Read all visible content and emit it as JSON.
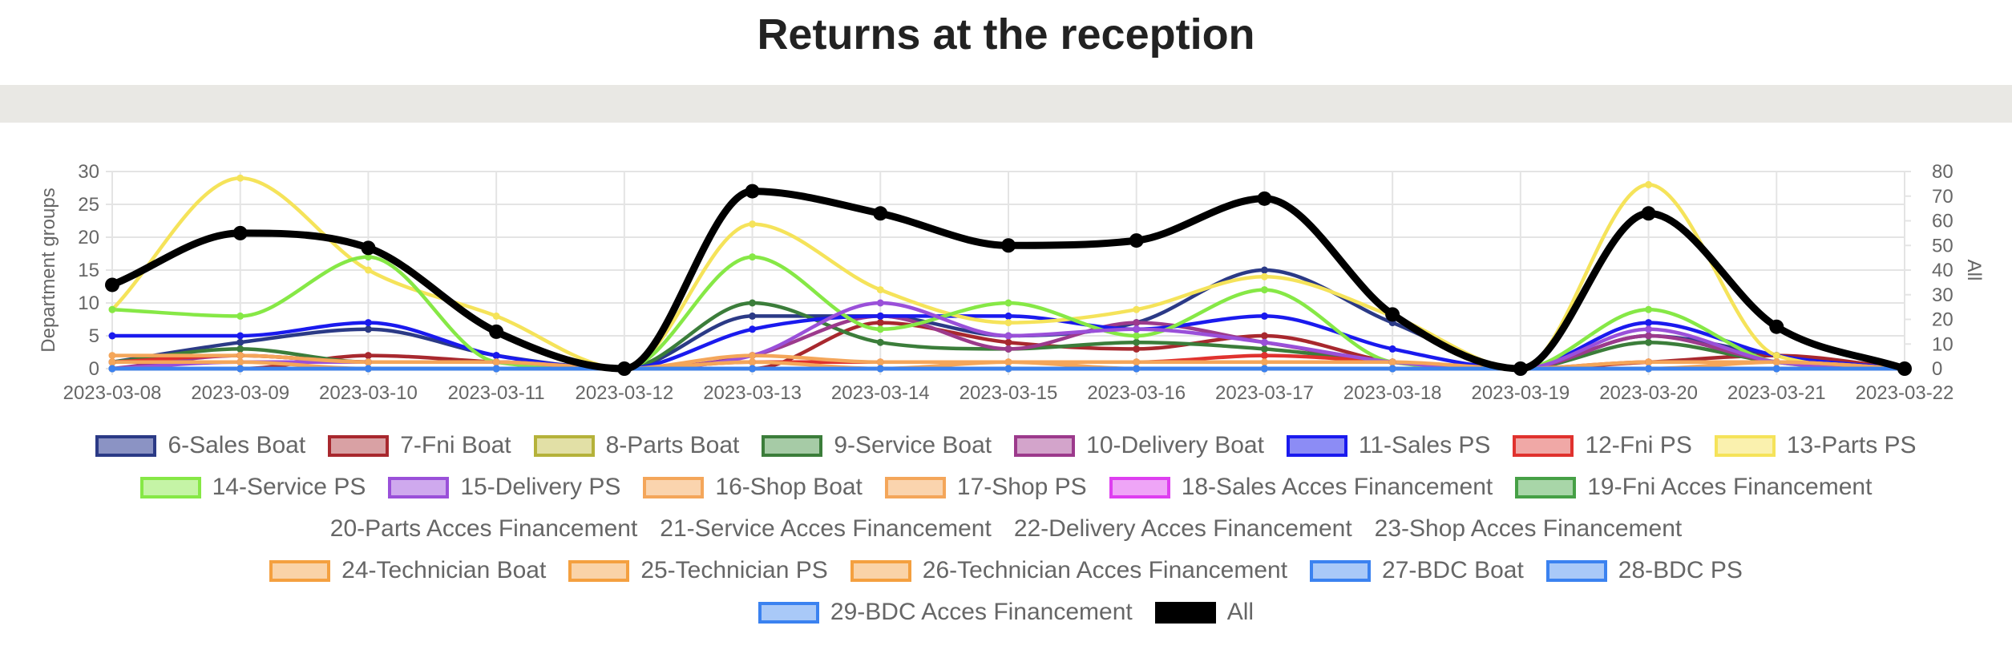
{
  "header": {
    "title": "Returns at the reception"
  },
  "chart_data": {
    "type": "line",
    "x": [
      "2023-03-08",
      "2023-03-09",
      "2023-03-10",
      "2023-03-11",
      "2023-03-12",
      "2023-03-13",
      "2023-03-14",
      "2023-03-15",
      "2023-03-16",
      "2023-03-17",
      "2023-03-18",
      "2023-03-19",
      "2023-03-20",
      "2023-03-21",
      "2023-03-22"
    ],
    "ylabel": "Department groups",
    "y2label": "All",
    "ylim": [
      0,
      30
    ],
    "y2lim": [
      0,
      80
    ],
    "yticks": [
      "0",
      "5",
      "10",
      "15",
      "20",
      "25",
      "30"
    ],
    "y2ticks": [
      "0",
      "10",
      "20",
      "30",
      "40",
      "50",
      "60",
      "70",
      "80"
    ],
    "grid": true,
    "legend_position": "bottom",
    "series": [
      {
        "name": "6-Sales Boat",
        "color": "#2b3a86",
        "fill": "#8b93c4",
        "axis": "left",
        "values": [
          1,
          4,
          6,
          2,
          0,
          8,
          8,
          5,
          7,
          15,
          7,
          0,
          5,
          2,
          0
        ]
      },
      {
        "name": "7-Fni Boat",
        "color": "#a8282e",
        "fill": "#d9a1a4",
        "axis": "left",
        "values": [
          0,
          0,
          2,
          1,
          0,
          0,
          7,
          4,
          3,
          5,
          1,
          0,
          1,
          2,
          0
        ]
      },
      {
        "name": "8-Parts Boat",
        "color": "#b5b23a",
        "fill": "#e2e0a6",
        "axis": "left",
        "values": [
          0,
          0,
          0,
          0,
          0,
          0,
          0,
          0,
          0,
          0,
          0,
          0,
          0,
          0,
          0
        ]
      },
      {
        "name": "9-Service Boat",
        "color": "#3b7d3a",
        "fill": "#a6cba6",
        "axis": "left",
        "values": [
          1,
          3,
          1,
          1,
          0,
          10,
          4,
          3,
          4,
          3,
          1,
          0,
          4,
          1,
          0
        ]
      },
      {
        "name": "10-Delivery Boat",
        "color": "#9c3a8c",
        "fill": "#d3a4cb",
        "axis": "left",
        "values": [
          0,
          2,
          1,
          1,
          0,
          2,
          8,
          3,
          7,
          4,
          1,
          0,
          5,
          1,
          0
        ]
      },
      {
        "name": "11-Sales PS",
        "color": "#1a1aee",
        "fill": "#8c8cf5",
        "axis": "left",
        "values": [
          5,
          5,
          7,
          2,
          0,
          6,
          8,
          8,
          6,
          8,
          3,
          0,
          7,
          2,
          0
        ]
      },
      {
        "name": "12-Fni PS",
        "color": "#e0322e",
        "fill": "#f0a8a6",
        "axis": "left",
        "values": [
          1,
          2,
          1,
          1,
          0,
          1,
          1,
          1,
          1,
          2,
          1,
          0,
          1,
          1,
          0
        ]
      },
      {
        "name": "13-Parts PS",
        "color": "#f5e35a",
        "fill": "#faf1ae",
        "axis": "left",
        "values": [
          9,
          29,
          15,
          8,
          0,
          22,
          12,
          7,
          9,
          14,
          8,
          0,
          28,
          2,
          0
        ]
      },
      {
        "name": "14-Service PS",
        "color": "#86e846",
        "fill": "#c5f4a6",
        "axis": "left",
        "values": [
          9,
          8,
          17,
          1,
          0,
          17,
          6,
          10,
          5,
          12,
          1,
          0,
          9,
          1,
          0
        ]
      },
      {
        "name": "15-Delivery PS",
        "color": "#9a50d9",
        "fill": "#cfa9ee",
        "axis": "left",
        "values": [
          0,
          1,
          1,
          1,
          0,
          2,
          10,
          5,
          6,
          4,
          1,
          0,
          6,
          1,
          0
        ]
      },
      {
        "name": "16-Shop Boat",
        "color": "#f4a65a",
        "fill": "#fad4ae",
        "axis": "left",
        "values": [
          2,
          2,
          1,
          1,
          0,
          2,
          1,
          1,
          1,
          1,
          1,
          0,
          1,
          1,
          0
        ]
      },
      {
        "name": "17-Shop PS",
        "color": "#f4a65a",
        "fill": "#fad4ae",
        "axis": "left",
        "values": [
          1,
          1,
          0,
          0,
          0,
          1,
          0,
          1,
          0,
          0,
          0,
          0,
          0,
          1,
          0
        ]
      },
      {
        "name": "18-Sales Acces Financement",
        "color": "#de3ff0",
        "fill": "#efa5f7",
        "axis": "left",
        "values": [
          0,
          0,
          0,
          0,
          0,
          0,
          0,
          0,
          0,
          0,
          0,
          0,
          0,
          0,
          0
        ]
      },
      {
        "name": "19-Fni Acces Financement",
        "color": "#46a046",
        "fill": "#a8d6a8",
        "axis": "left",
        "values": [
          0,
          0,
          0,
          0,
          0,
          0,
          0,
          0,
          0,
          0,
          0,
          0,
          0,
          0,
          0
        ]
      },
      {
        "name": "20-Parts Acces Financement",
        "color": null,
        "fill": null,
        "axis": "left",
        "values": [
          0,
          0,
          0,
          0,
          0,
          0,
          0,
          0,
          0,
          0,
          0,
          0,
          0,
          0,
          0
        ]
      },
      {
        "name": "21-Service Acces Financement",
        "color": null,
        "fill": null,
        "axis": "left",
        "values": [
          0,
          0,
          0,
          0,
          0,
          0,
          0,
          0,
          0,
          0,
          0,
          0,
          0,
          0,
          0
        ]
      },
      {
        "name": "22-Delivery Acces Financement",
        "color": null,
        "fill": null,
        "axis": "left",
        "values": [
          0,
          0,
          0,
          0,
          0,
          0,
          0,
          0,
          0,
          0,
          0,
          0,
          0,
          0,
          0
        ]
      },
      {
        "name": "23-Shop Acces Financement",
        "color": null,
        "fill": null,
        "axis": "left",
        "values": [
          0,
          0,
          0,
          0,
          0,
          0,
          0,
          0,
          0,
          0,
          0,
          0,
          0,
          0,
          0
        ]
      },
      {
        "name": "24-Technician Boat",
        "color": "#f4a040",
        "fill": "#fad3a8",
        "axis": "left",
        "values": [
          0,
          0,
          0,
          0,
          0,
          0,
          0,
          0,
          0,
          0,
          0,
          0,
          0,
          0,
          0
        ]
      },
      {
        "name": "25-Technician PS",
        "color": "#f4a040",
        "fill": "#fad3a8",
        "axis": "left",
        "values": [
          0,
          0,
          0,
          0,
          0,
          0,
          0,
          0,
          0,
          0,
          0,
          0,
          0,
          0,
          0
        ]
      },
      {
        "name": "26-Technician Acces Financement",
        "color": "#f4a040",
        "fill": "#fad3a8",
        "axis": "left",
        "values": [
          0,
          0,
          0,
          0,
          0,
          0,
          0,
          0,
          0,
          0,
          0,
          0,
          0,
          0,
          0
        ]
      },
      {
        "name": "27-BDC Boat",
        "color": "#3b82f0",
        "fill": "#a9c9f8",
        "axis": "left",
        "values": [
          0,
          0,
          0,
          0,
          0,
          0,
          0,
          0,
          0,
          0,
          0,
          0,
          0,
          0,
          0
        ]
      },
      {
        "name": "28-BDC PS",
        "color": "#3b82f0",
        "fill": "#a9c9f8",
        "axis": "left",
        "values": [
          0,
          0,
          0,
          0,
          0,
          0,
          0,
          0,
          0,
          0,
          0,
          0,
          0,
          0,
          0
        ]
      },
      {
        "name": "29-BDC Acces Financement",
        "color": "#3b82f0",
        "fill": "#a9c9f8",
        "axis": "left",
        "values": [
          0,
          0,
          0,
          0,
          0,
          0,
          0,
          0,
          0,
          0,
          0,
          0,
          0,
          0,
          0
        ]
      },
      {
        "name": "All",
        "color": "#000000",
        "fill": "#000000",
        "axis": "right",
        "values": [
          34,
          55,
          49,
          15,
          0,
          72,
          63,
          50,
          52,
          69,
          22,
          0,
          63,
          17,
          0
        ]
      }
    ]
  }
}
